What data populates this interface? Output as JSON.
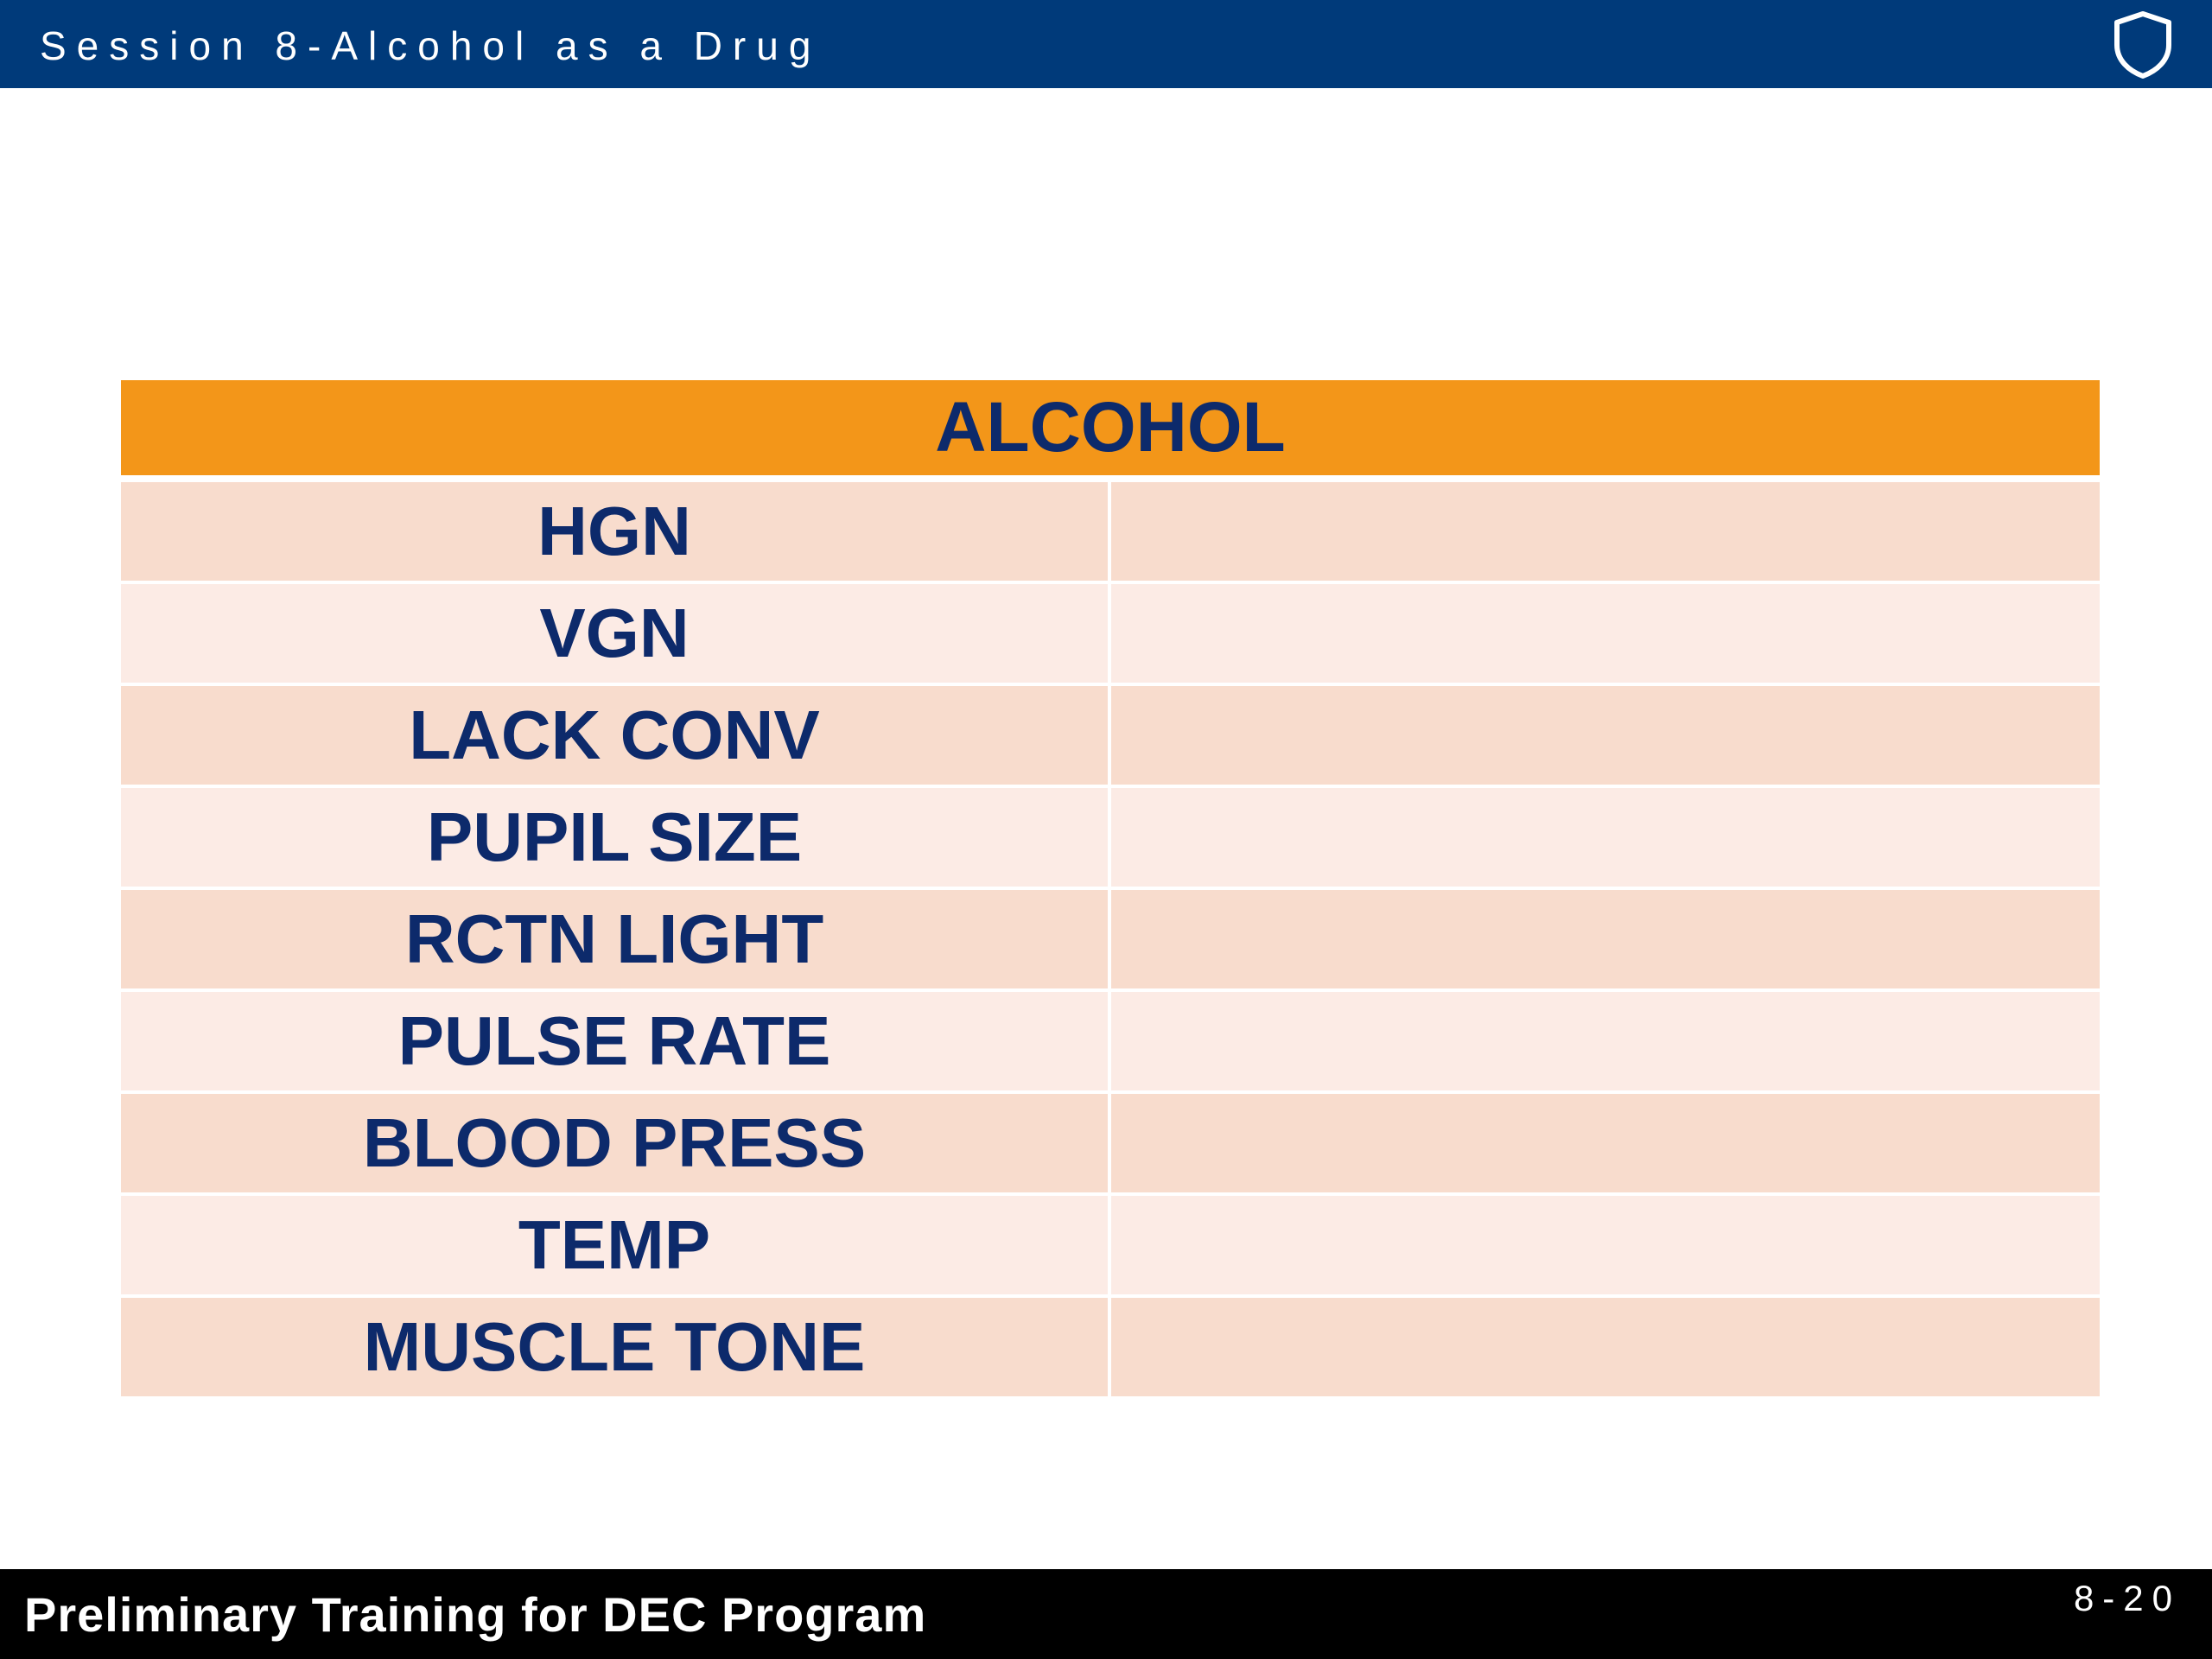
{
  "header": {
    "session_title": "Session 8-Alcohol as a Drug",
    "logo_icon": "shield-icon",
    "bar_color": "#003a7a"
  },
  "table": {
    "title": "ALCOHOL",
    "header_color": "#f39619",
    "rows": [
      {
        "label": "HGN",
        "value": ""
      },
      {
        "label": "VGN",
        "value": ""
      },
      {
        "label": "LACK CONV",
        "value": ""
      },
      {
        "label": "PUPIL SIZE",
        "value": ""
      },
      {
        "label": "RCTN LIGHT",
        "value": ""
      },
      {
        "label": "PULSE RATE",
        "value": ""
      },
      {
        "label": "BLOOD PRESS",
        "value": ""
      },
      {
        "label": "TEMP",
        "value": ""
      },
      {
        "label": "MUSCLE TONE",
        "value": ""
      }
    ]
  },
  "footer": {
    "title": "Preliminary Training for DEC Program",
    "page_number": "8-20"
  }
}
